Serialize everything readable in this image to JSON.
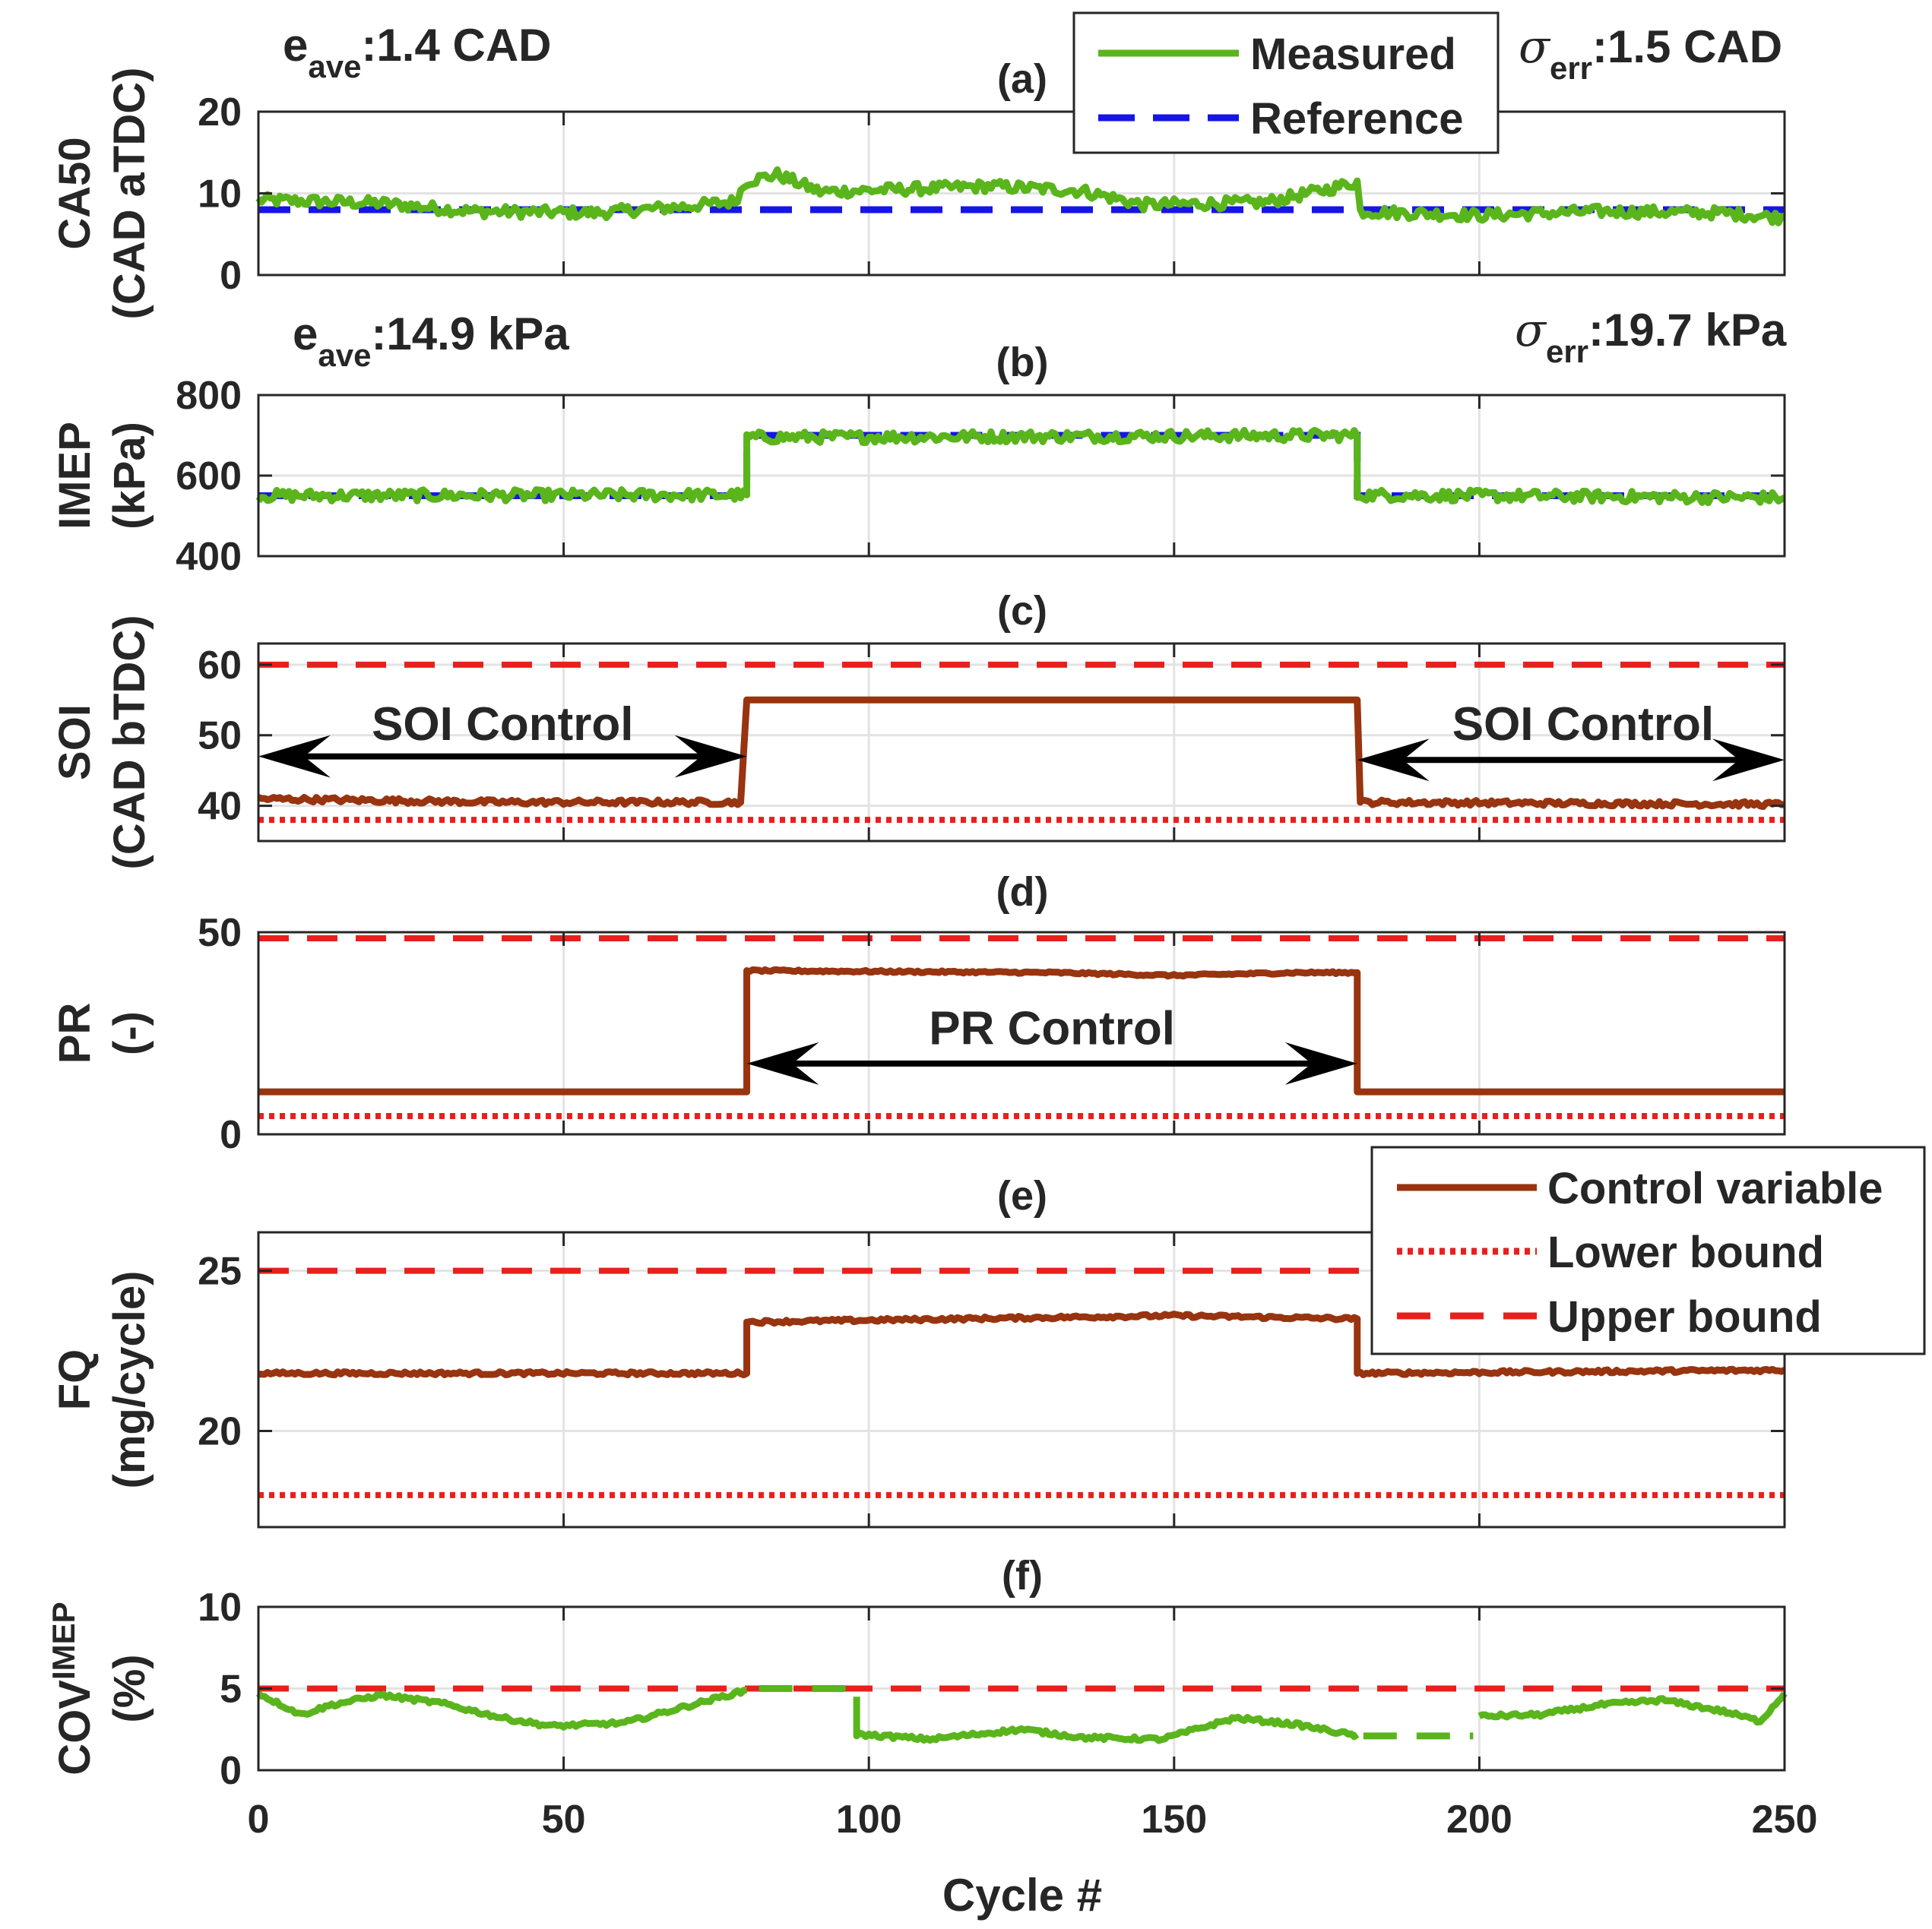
{
  "chart_data": {
    "type": "line",
    "x_label": "Cycle #",
    "x_ticks": [
      "0",
      "50",
      "100",
      "150",
      "200",
      "250"
    ],
    "xlim": [
      0,
      250
    ],
    "colors": {
      "measured": "#5ab51c",
      "reference": "#1515e6",
      "control": "#983410",
      "bound": "#e8201d",
      "arrow": "#000000",
      "grid": "#e3e3e3",
      "axis": "#262626"
    },
    "legend_top": {
      "measured": "Measured",
      "reference": "Reference"
    },
    "legend_bottom": {
      "control": "Control variable",
      "lower": "Lower bound",
      "upper": "Upper bound"
    },
    "panels": [
      {
        "key": "a",
        "title": "(a)",
        "ylabel_lines": [
          "CA50",
          "(CAD aTDC)"
        ],
        "ylim": [
          0,
          20
        ],
        "yticks": [
          {
            "v": 0,
            "t": "0"
          },
          {
            "v": 10,
            "t": "10"
          },
          {
            "v": 20,
            "t": "20"
          }
        ],
        "reference": [
          [
            0,
            8
          ],
          [
            250,
            8
          ]
        ],
        "measured_segments": [
          [
            0,
            9.2
          ],
          [
            20,
            8.8
          ],
          [
            35,
            7.8
          ],
          [
            55,
            7.6
          ],
          [
            70,
            8.4
          ],
          [
            78,
            9.0
          ],
          [
            80,
            11.5
          ],
          [
            85,
            12.3
          ],
          [
            92,
            10.2
          ],
          [
            110,
            10.6
          ],
          [
            120,
            10.9
          ],
          [
            135,
            10.3
          ],
          [
            145,
            8.6
          ],
          [
            165,
            8.9
          ],
          [
            175,
            10.5
          ],
          [
            180,
            11.4
          ],
          [
            180.5,
            7.8
          ],
          [
            200,
            7.3
          ],
          [
            220,
            7.8
          ],
          [
            240,
            7.6
          ],
          [
            250,
            7.0
          ]
        ],
        "annot_left": {
          "main": "e",
          "sub": "ave",
          "value": ":1.4 CAD"
        },
        "annot_right": {
          "main": "σ",
          "sub": "err",
          "value": ":1.5 CAD"
        }
      },
      {
        "key": "b",
        "title": "(b)",
        "ylabel_lines": [
          "IMEP",
          "(kPa)"
        ],
        "ylim": [
          400,
          800
        ],
        "yticks": [
          {
            "v": 400,
            "t": "400"
          },
          {
            "v": 600,
            "t": "600"
          },
          {
            "v": 800,
            "t": "800"
          }
        ],
        "reference": [
          [
            0,
            550
          ],
          [
            80,
            550
          ],
          [
            80,
            700
          ],
          [
            180,
            700
          ],
          [
            180,
            550
          ],
          [
            250,
            550
          ]
        ],
        "measured_segments": [
          [
            0,
            550
          ],
          [
            80,
            552
          ],
          [
            80,
            695
          ],
          [
            180,
            700
          ],
          [
            180,
            552
          ],
          [
            250,
            545
          ]
        ],
        "annot_left": {
          "main": "e",
          "sub": "ave",
          "value": ":14.9 kPa"
        },
        "annot_right": {
          "main": "σ",
          "sub": "err",
          "value": ":19.7 kPa"
        }
      },
      {
        "key": "c",
        "title": "(c)",
        "ylabel_lines": [
          "SOI",
          "(CAD bTDC)"
        ],
        "ylim": [
          35,
          63
        ],
        "yticks": [
          {
            "v": 40,
            "t": "40"
          },
          {
            "v": 50,
            "t": "50"
          },
          {
            "v": 60,
            "t": "60"
          }
        ],
        "upper": 60,
        "lower": 38,
        "control": [
          [
            0,
            41
          ],
          [
            40,
            40.5
          ],
          [
            79,
            40.5
          ],
          [
            80,
            55
          ],
          [
            180,
            55
          ],
          [
            180.5,
            40.5
          ],
          [
            250,
            40.2
          ]
        ],
        "arrows": [
          {
            "label": "SOI Control",
            "x1": 0,
            "x2": 80,
            "y": 47,
            "label_x": 40,
            "label_y": 51.5
          },
          {
            "label": "SOI Control",
            "x1": 180,
            "x2": 250,
            "y": 46.5,
            "label_x": 217,
            "label_y": 51.5
          }
        ]
      },
      {
        "key": "d",
        "title": "(d)",
        "ylabel_lines": [
          "PR",
          "(-)"
        ],
        "ylim": [
          0,
          50
        ],
        "yticks": [
          {
            "v": 0,
            "t": "0"
          },
          {
            "v": 50,
            "t": "50"
          }
        ],
        "upper": 48.5,
        "lower": 4.5,
        "control": [
          [
            0,
            10.5
          ],
          [
            80,
            10.5
          ],
          [
            80,
            40.5
          ],
          [
            130,
            40
          ],
          [
            150,
            39.3
          ],
          [
            170,
            40
          ],
          [
            180,
            40
          ],
          [
            180,
            10.5
          ],
          [
            250,
            10.5
          ]
        ],
        "arrows": [
          {
            "label": "PR Control",
            "x1": 80,
            "x2": 180,
            "y": 17.5,
            "label_x": 130,
            "label_y": 26
          }
        ]
      },
      {
        "key": "e",
        "title": "(e)",
        "ylabel_lines": [
          "FQ",
          "(mg/cycle)"
        ],
        "ylim": [
          17,
          26.2
        ],
        "yticks": [
          {
            "v": 20,
            "t": "20"
          },
          {
            "v": 25,
            "t": "25"
          }
        ],
        "upper": 25,
        "lower": 18,
        "control": [
          [
            0,
            21.8
          ],
          [
            80,
            21.8
          ],
          [
            80,
            23.4
          ],
          [
            150,
            23.6
          ],
          [
            180,
            23.5
          ],
          [
            180,
            21.8
          ],
          [
            250,
            21.9
          ]
        ]
      },
      {
        "key": "f",
        "title": "(f)",
        "ylabel_main": "COV",
        "ylabel_sub": "IMEP",
        "ylabel_unit": "(%)",
        "ylim": [
          0,
          10
        ],
        "yticks": [
          {
            "v": 0,
            "t": "0"
          },
          {
            "v": 5,
            "t": "5"
          },
          {
            "v": 10,
            "t": "10"
          }
        ],
        "upper": 5,
        "measured_segments": [
          [
            0,
            4.7
          ],
          [
            7,
            3.4
          ],
          [
            12,
            4.0
          ],
          [
            20,
            4.6
          ],
          [
            30,
            4.1
          ],
          [
            40,
            3.2
          ],
          [
            48,
            2.7
          ],
          [
            60,
            2.9
          ],
          [
            70,
            3.9
          ],
          [
            80,
            4.9
          ],
          [
            91,
            5.0
          ],
          [
            98,
            4.5
          ],
          [
            98,
            2.2
          ],
          [
            110,
            1.9
          ],
          [
            125,
            2.5
          ],
          [
            135,
            2.0
          ],
          [
            148,
            1.9
          ],
          [
            160,
            3.2
          ],
          [
            170,
            2.8
          ],
          [
            180,
            2.1
          ],
          [
            195,
            2.1
          ],
          [
            200,
            3.3
          ],
          [
            210,
            3.4
          ],
          [
            220,
            4.0
          ],
          [
            230,
            4.3
          ],
          [
            240,
            3.6
          ],
          [
            246,
            3.0
          ],
          [
            250,
            4.7
          ]
        ]
      }
    ]
  }
}
